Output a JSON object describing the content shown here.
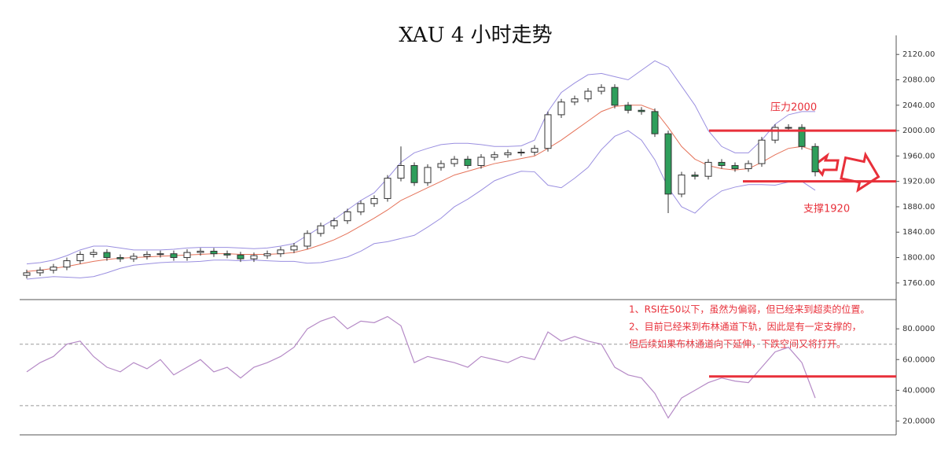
{
  "chart_data": [
    {
      "type": "candlestick",
      "title": "XAU 4 小时走势",
      "open": [
        1772,
        1776,
        1780,
        1785,
        1795,
        1805,
        1808,
        1800,
        1798,
        1802,
        1805,
        1806,
        1800,
        1808,
        1810,
        1806,
        1804,
        1798,
        1803,
        1806,
        1812,
        1818,
        1838,
        1850,
        1858,
        1872,
        1885,
        1893,
        1925,
        1945,
        1918,
        1942,
        1948,
        1955,
        1945,
        1958,
        1962,
        1965,
        1966,
        1972,
        2025,
        2045,
        2050,
        2062,
        2068,
        2040,
        2032,
        2030,
        1995,
        1900,
        1930,
        1928,
        1950,
        1945,
        1940,
        1948,
        1985,
        2005,
        2005,
        1975
      ],
      "high": [
        1781,
        1785,
        1790,
        1800,
        1810,
        1813,
        1813,
        1805,
        1807,
        1810,
        1811,
        1811,
        1813,
        1815,
        1815,
        1811,
        1809,
        1808,
        1811,
        1817,
        1823,
        1843,
        1855,
        1863,
        1877,
        1890,
        1898,
        1930,
        1975,
        1950,
        1947,
        1953,
        1960,
        1960,
        1963,
        1967,
        1970,
        1971,
        1977,
        2030,
        2050,
        2055,
        2067,
        2073,
        2073,
        2045,
        2037,
        2035,
        2000,
        1935,
        1935,
        1955,
        1955,
        1950,
        1953,
        1990,
        2010,
        2010,
        2010,
        1980
      ],
      "low": [
        1767,
        1771,
        1775,
        1780,
        1790,
        1800,
        1795,
        1793,
        1793,
        1797,
        1800,
        1795,
        1795,
        1803,
        1801,
        1799,
        1793,
        1793,
        1798,
        1801,
        1807,
        1813,
        1833,
        1845,
        1853,
        1867,
        1880,
        1888,
        1920,
        1913,
        1913,
        1937,
        1943,
        1940,
        1940,
        1953,
        1957,
        1960,
        1961,
        1967,
        2020,
        2040,
        2045,
        2057,
        2035,
        2027,
        2025,
        1990,
        1870,
        1895,
        1923,
        1923,
        1940,
        1935,
        1935,
        1943,
        1980,
        2000,
        1970,
        1928
      ],
      "close": [
        1776,
        1780,
        1785,
        1795,
        1805,
        1808,
        1800,
        1798,
        1802,
        1805,
        1806,
        1800,
        1808,
        1810,
        1806,
        1804,
        1798,
        1803,
        1806,
        1812,
        1818,
        1838,
        1850,
        1858,
        1872,
        1885,
        1893,
        1925,
        1945,
        1918,
        1942,
        1948,
        1955,
        1945,
        1958,
        1962,
        1965,
        1966,
        1972,
        2025,
        2045,
        2050,
        2062,
        2068,
        2040,
        2032,
        2030,
        1995,
        1900,
        1930,
        1928,
        1950,
        1945,
        1940,
        1948,
        1985,
        2005,
        2005,
        1975,
        1935
      ],
      "up_color": "#ffffff",
      "down_color": "#2e9e5b",
      "edge_color": "#333333",
      "bands": {
        "color": "#9a8fe0",
        "middle_color": "#e5735a",
        "upper": [
          1790,
          1792,
          1796,
          1803,
          1812,
          1818,
          1818,
          1815,
          1812,
          1812,
          1812,
          1813,
          1815,
          1816,
          1816,
          1816,
          1815,
          1814,
          1815,
          1818,
          1822,
          1835,
          1848,
          1860,
          1875,
          1890,
          1902,
          1925,
          1950,
          1965,
          1972,
          1978,
          1980,
          1980,
          1978,
          1975,
          1975,
          1976,
          1985,
          2030,
          2060,
          2075,
          2088,
          2090,
          2085,
          2080,
          2095,
          2110,
          2100,
          2070,
          2040,
          2000,
          1975,
          1965,
          1965,
          1985,
          2010,
          2025,
          2030,
          2030
        ],
        "middle": [
          1778,
          1780,
          1783,
          1786,
          1790,
          1794,
          1797,
          1799,
          1800,
          1801,
          1802,
          1803,
          1804,
          1805,
          1806,
          1806,
          1805,
          1805,
          1805,
          1806,
          1808,
          1813,
          1820,
          1828,
          1838,
          1850,
          1862,
          1875,
          1890,
          1900,
          1910,
          1920,
          1930,
          1936,
          1942,
          1948,
          1952,
          1956,
          1960,
          1972,
          1985,
          2000,
          2015,
          2030,
          2038,
          2040,
          2040,
          2032,
          2005,
          1975,
          1955,
          1945,
          1940,
          1938,
          1940,
          1950,
          1962,
          1972,
          1975,
          1968
        ],
        "lower": [
          1766,
          1768,
          1770,
          1769,
          1768,
          1770,
          1776,
          1783,
          1788,
          1790,
          1792,
          1793,
          1793,
          1794,
          1796,
          1796,
          1795,
          1796,
          1795,
          1794,
          1794,
          1791,
          1792,
          1796,
          1801,
          1810,
          1822,
          1825,
          1830,
          1835,
          1848,
          1862,
          1880,
          1892,
          1906,
          1921,
          1929,
          1936,
          1935,
          1914,
          1910,
          1925,
          1942,
          1970,
          1991,
          2000,
          1985,
          1954,
          1910,
          1880,
          1870,
          1890,
          1905,
          1911,
          1915,
          1915,
          1914,
          1919,
          1920,
          1906
        ]
      },
      "ylim": [
        1735,
        2150
      ],
      "yticks": [
        {
          "value": 1760,
          "label": "1760.00"
        },
        {
          "value": 1800,
          "label": "1800.00"
        },
        {
          "value": 1840,
          "label": "1840.00"
        },
        {
          "value": 1880,
          "label": "1880.00"
        },
        {
          "value": 1920,
          "label": "1920.00"
        },
        {
          "value": 1960,
          "label": "1960.00"
        },
        {
          "value": 2000,
          "label": "2000.00"
        },
        {
          "value": 2040,
          "label": "2040.00"
        },
        {
          "value": 2080,
          "label": "2080.00"
        },
        {
          "value": 2120,
          "label": "2120.00"
        }
      ],
      "levels": [
        2000,
        1920
      ],
      "level_color": "#e8303a",
      "annotations": [
        {
          "text": "压力2000"
        },
        {
          "text": "支撑1920"
        }
      ]
    },
    {
      "type": "line",
      "values": [
        52,
        58,
        62,
        70,
        72,
        62,
        55,
        52,
        58,
        54,
        60,
        50,
        55,
        60,
        52,
        55,
        48,
        55,
        58,
        62,
        68,
        80,
        85,
        88,
        80,
        85,
        84,
        88,
        82,
        58,
        62,
        60,
        58,
        55,
        62,
        60,
        58,
        62,
        60,
        78,
        72,
        75,
        72,
        70,
        55,
        50,
        48,
        38,
        22,
        35,
        40,
        45,
        48,
        46,
        45,
        55,
        65,
        68,
        58,
        35
      ],
      "color": "#b58ac6",
      "ylim": [
        11,
        98
      ],
      "yticks": [
        {
          "value": 20,
          "label": "20.0000"
        },
        {
          "value": 40,
          "label": "40.0000"
        },
        {
          "value": 60,
          "label": "60.0000"
        },
        {
          "value": 80,
          "label": "80.0000"
        }
      ],
      "dashed_levels": [
        70,
        30
      ],
      "levels": [
        49
      ],
      "level_color": "#e8303a",
      "annotations": [
        "1、RSI在50以下，虽然为偏弱，但已经来到超卖的位置。",
        "2、目前已经来到布林通道下轨，因此是有一定支撑的，",
        "但后续如果布林通道向下延伸，下跌空间又将打开。"
      ]
    }
  ]
}
